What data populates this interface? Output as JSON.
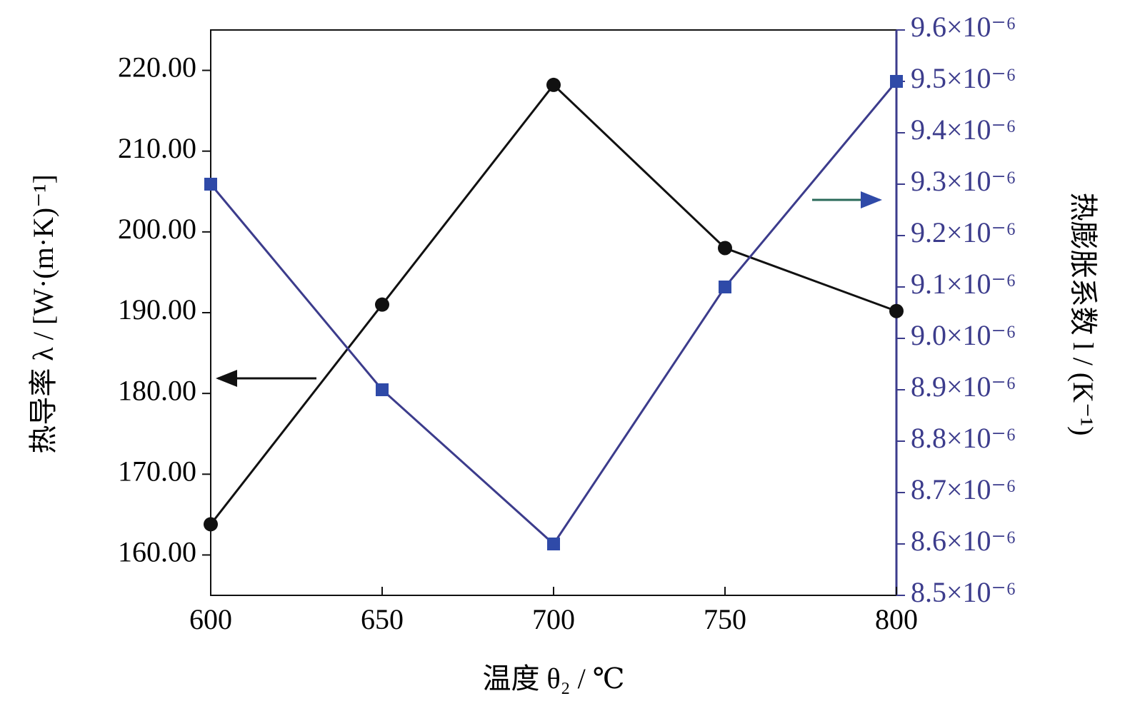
{
  "chart_data": {
    "type": "line",
    "x_label": "温度 θ₂ / ℃",
    "y_label": "热导率 λ / [W·(m·K)⁻¹]",
    "y2_label": "热膨胀系数 l / (K⁻¹)",
    "x": [
      600,
      650,
      700,
      750,
      800
    ],
    "xlim": [
      600,
      800
    ],
    "xticks": [
      600,
      650,
      700,
      750,
      800
    ],
    "ylim": [
      155,
      225
    ],
    "yticks": [
      {
        "value": 160,
        "label": "160.00"
      },
      {
        "value": 170,
        "label": "170.00"
      },
      {
        "value": 180,
        "label": "180.00"
      },
      {
        "value": 190,
        "label": "190.00"
      },
      {
        "value": 200,
        "label": "200.00"
      },
      {
        "value": 210,
        "label": "210.00"
      },
      {
        "value": 220,
        "label": "220.00"
      }
    ],
    "y2lim": [
      8.5e-06,
      9.6e-06
    ],
    "y2ticks": [
      {
        "value": 8.5e-06,
        "label": "8.5×10⁻⁶"
      },
      {
        "value": 8.6e-06,
        "label": "8.6×10⁻⁶"
      },
      {
        "value": 8.7e-06,
        "label": "8.7×10⁻⁶"
      },
      {
        "value": 8.8e-06,
        "label": "8.8×10⁻⁶"
      },
      {
        "value": 8.9e-06,
        "label": "8.9×10⁻⁶"
      },
      {
        "value": 9e-06,
        "label": "9.0×10⁻⁶"
      },
      {
        "value": 9.1e-06,
        "label": "9.1×10⁻⁶"
      },
      {
        "value": 9.2e-06,
        "label": "9.2×10⁻⁶"
      },
      {
        "value": 9.3e-06,
        "label": "9.3×10⁻⁶"
      },
      {
        "value": 9.4e-06,
        "label": "9.4×10⁻⁶"
      },
      {
        "value": 9.5e-06,
        "label": "9.5×10⁻⁶"
      },
      {
        "value": 9.6e-06,
        "label": "9.6×10⁻⁶"
      }
    ],
    "y2_color": "#3c3c8c",
    "series": [
      {
        "color": "#111111",
        "marker": "circle",
        "values": [
          163.8,
          191,
          218.2,
          198,
          190.2
        ]
      },
      {
        "color": "#2f4aa8",
        "line_color": "#3c3c8c",
        "marker": "square",
        "axis": "y2",
        "values": [
          9.3e-06,
          8.9e-06,
          8.6e-06,
          9.1e-06,
          9.5e-06
        ]
      }
    ]
  }
}
